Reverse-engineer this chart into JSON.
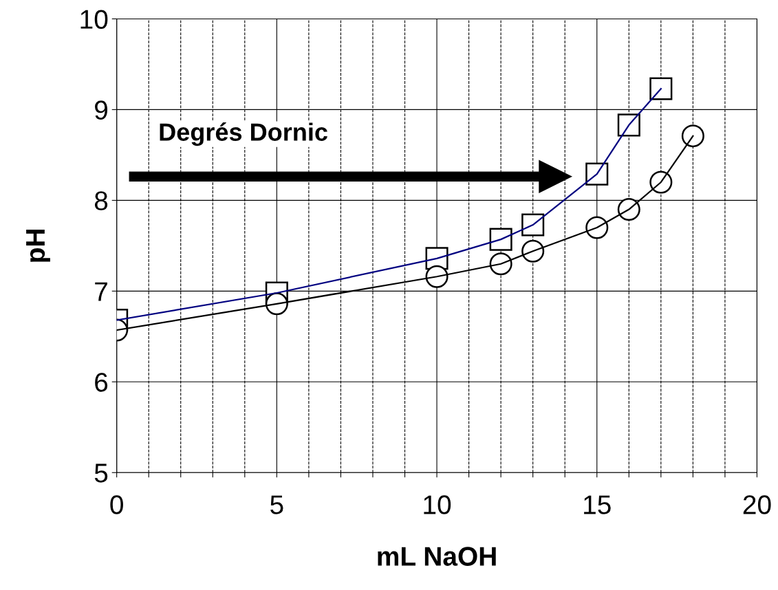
{
  "chart_data": {
    "type": "line",
    "xlabel": "mL NaOH",
    "ylabel": "pH",
    "annotations": [
      "Degrés Dornic"
    ],
    "xlim": [
      0,
      20
    ],
    "ylim": [
      5,
      10
    ],
    "xticks": [
      0,
      {
        "value": 1,
        "label": null
      },
      {
        "value": 2,
        "label": null
      },
      {
        "value": 3,
        "label": null
      },
      {
        "value": 4,
        "label": null
      },
      5,
      {
        "value": 6,
        "label": null
      },
      {
        "value": 7,
        "label": null
      },
      {
        "value": 8,
        "label": null
      },
      {
        "value": 9,
        "label": null
      },
      10,
      {
        "value": 11,
        "label": null
      },
      {
        "value": 12,
        "label": null
      },
      {
        "value": 13,
        "label": null
      },
      {
        "value": 14,
        "label": null
      },
      15,
      {
        "value": 16,
        "label": null
      },
      {
        "value": 17,
        "label": null
      },
      {
        "value": 18,
        "label": null
      },
      {
        "value": 19,
        "label": null
      },
      20
    ],
    "yticks": [
      5,
      6,
      7,
      8,
      9,
      10
    ],
    "grid": true,
    "series": [
      {
        "color": "#000080",
        "marker": "square",
        "x": [
          0,
          5,
          10,
          12,
          13,
          15,
          16,
          17
        ],
        "values": [
          6.68,
          6.98,
          7.36,
          7.57,
          7.73,
          8.29,
          8.83,
          9.23
        ]
      },
      {
        "color": "#000000",
        "marker": "circle",
        "x": [
          0,
          5,
          10,
          12,
          13,
          15,
          16,
          17,
          18
        ],
        "values": [
          6.57,
          6.86,
          7.16,
          7.3,
          7.44,
          7.7,
          7.9,
          8.2,
          8.71
        ]
      }
    ]
  }
}
